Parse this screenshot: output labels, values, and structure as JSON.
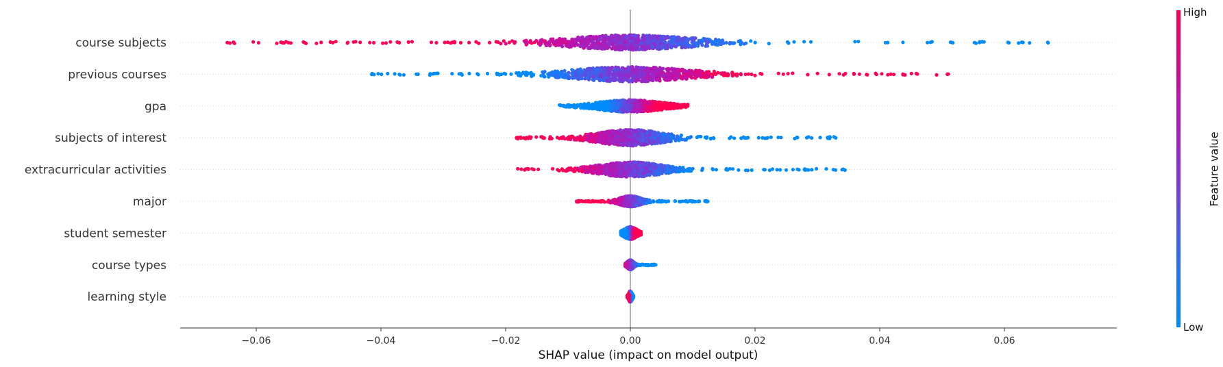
{
  "chart_data": {
    "type": "scatter",
    "subtype": "shap-beeswarm",
    "title": "",
    "xlabel": "SHAP value (impact on model output)",
    "ylabel": "",
    "xlim": [
      -0.072,
      0.078
    ],
    "xticks": [
      -0.06,
      -0.04,
      -0.02,
      0.0,
      0.02,
      0.04,
      0.06
    ],
    "xtick_labels": [
      "−0.06",
      "−0.04",
      "−0.02",
      "0.00",
      "0.02",
      "0.04",
      "0.06"
    ],
    "grid": "dotted horizontal row lines",
    "colorbar": {
      "label": "Feature value",
      "high_label": "High",
      "low_label": "Low",
      "low_color": "#008bfb",
      "high_color": "#ff0052",
      "placement": "right"
    },
    "zero_line_color": "#999999",
    "features": [
      {
        "name": "course subjects",
        "min": -0.066,
        "max": 0.0715,
        "mean_abs": 0.012
      },
      {
        "name": "previous courses",
        "min": -0.0415,
        "max": 0.0511,
        "mean_abs": 0.011
      },
      {
        "name": "gpa",
        "min": -0.0115,
        "max": 0.0092,
        "mean_abs": 0.005
      },
      {
        "name": "subjects of interest",
        "min": -0.0183,
        "max": 0.0336,
        "mean_abs": 0.005
      },
      {
        "name": "extracurricular activities",
        "min": -0.0184,
        "max": 0.0345,
        "mean_abs": 0.005
      },
      {
        "name": "major",
        "min": -0.0093,
        "max": 0.0125,
        "mean_abs": 0.003
      },
      {
        "name": "student semester",
        "min": -0.0015,
        "max": 0.0017,
        "mean_abs": 0.001
      },
      {
        "name": "course types",
        "min": -0.0008,
        "max": 0.0041,
        "mean_abs": 0.001
      },
      {
        "name": "learning style",
        "min": -0.0005,
        "max": 0.0005,
        "mean_abs": 0.0003
      }
    ]
  }
}
